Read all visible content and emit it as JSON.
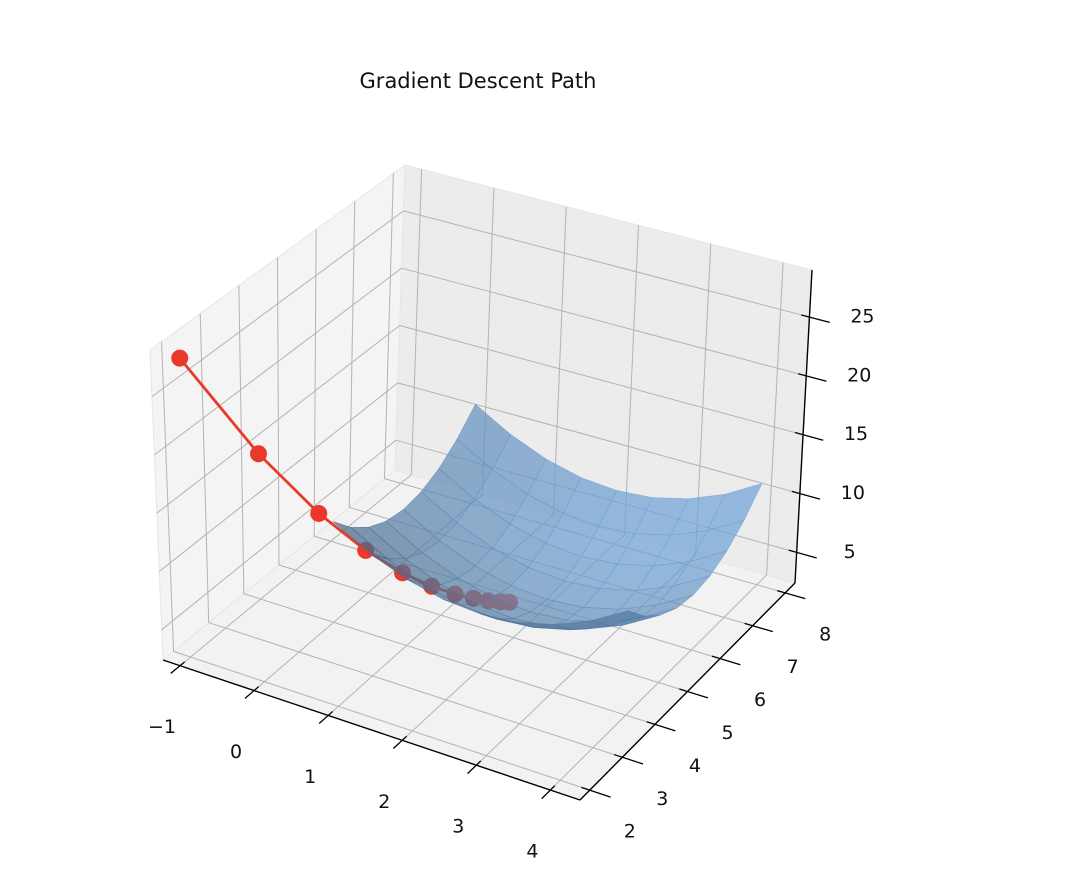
{
  "chart_data": {
    "type": "surface3d",
    "title": "Gradient Descent Path",
    "surface": {
      "x": [
        0,
        0.5,
        1,
        1.5,
        2,
        2.5,
        3,
        3.5,
        4
      ],
      "y": [
        4,
        4.5,
        5,
        5.5,
        6,
        6.5,
        7,
        7.5,
        8
      ],
      "z": [
        [
          11,
          9.25,
          8,
          7.25,
          7,
          7.25,
          8,
          9.25,
          11
        ],
        [
          9.25,
          7.5,
          6.25,
          5.5,
          5.25,
          5.5,
          6.25,
          7.5,
          9.25
        ],
        [
          8,
          6.25,
          5,
          4.25,
          4,
          4.25,
          5,
          6.25,
          8
        ],
        [
          7.25,
          5.5,
          4.25,
          3.5,
          3.25,
          3.5,
          4.25,
          5.5,
          7.25
        ],
        [
          7,
          5.25,
          4,
          3.25,
          3,
          3.25,
          4,
          5.25,
          7
        ],
        [
          7.25,
          5.5,
          4.25,
          3.5,
          3.25,
          3.5,
          4.25,
          5.5,
          7.25
        ],
        [
          8,
          6.25,
          5,
          4.25,
          4,
          4.25,
          5,
          6.25,
          8
        ],
        [
          9.25,
          7.5,
          6.25,
          5.5,
          5.25,
          5.5,
          6.25,
          7.5,
          9.25
        ],
        [
          11,
          9.25,
          8,
          7.25,
          7,
          7.25,
          8,
          9.25,
          11
        ]
      ],
      "color": "#6e9fd0"
    },
    "path": {
      "x": [
        -1,
        -0.4,
        0.08,
        0.464,
        0.771,
        1.017,
        1.214,
        1.371,
        1.497,
        1.597,
        1.678
      ],
      "y": [
        2,
        2.8,
        3.44,
        3.952,
        4.362,
        4.689,
        4.951,
        5.161,
        5.329,
        5.463,
        5.571
      ],
      "z": [
        28,
        19,
        13.24,
        9.55,
        7.19,
        5.68,
        4.72,
        4.1,
        3.7,
        3.45,
        3.29
      ],
      "color": "#e8392a"
    },
    "xlim": [
      -1.23,
      4.4
    ],
    "ylim": [
      1.7,
      8.3
    ],
    "zlim": [
      2.4,
      29
    ],
    "xticks": [
      {
        "value": -1,
        "label": "−1"
      },
      0,
      1,
      2,
      3,
      4
    ],
    "yticks": [
      2,
      3,
      4,
      5,
      6,
      7,
      8
    ],
    "zticks": [
      5,
      10,
      15,
      20,
      25
    ],
    "grid": true
  }
}
